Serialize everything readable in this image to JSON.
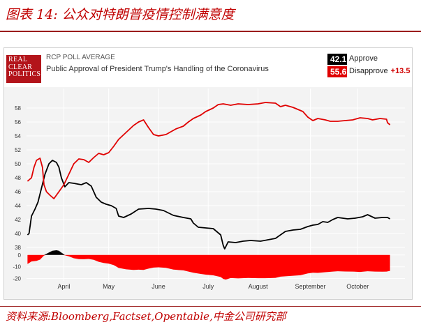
{
  "figure": {
    "title": "图表 14:  公众对特朗普疫情控制满意度",
    "source": "资料来源:Bloomberg,Factset,Opentable,中金公司研究部"
  },
  "header": {
    "logo_lines": [
      "REAL",
      "CLEAR",
      "POLITICS"
    ],
    "poll_title": "RCP POLL AVERAGE",
    "subtitle": "Public Approval of President Trump's Handling of the Coronavirus",
    "approve_value": "42.1",
    "approve_label": "Approve",
    "disapprove_value": "55.6",
    "disapprove_label": "Disapprove",
    "spread": "+13.5"
  },
  "colors": {
    "approve": "#000000",
    "disapprove": "#e00000",
    "plot_bg": "#f3f3f3",
    "grid": "#ffffff",
    "title": "#c00000"
  },
  "chart_data": [
    {
      "type": "line",
      "title": "RCP POLL AVERAGE",
      "subtitle": "Public Approval of President Trump's Handling of the Coronavirus",
      "x_ticks": [
        "April",
        "May",
        "June",
        "July",
        "August",
        "September",
        "October"
      ],
      "x_tick_positions": [
        0.1,
        1.0,
        2.0,
        3.0,
        4.0,
        5.05,
        6.0
      ],
      "xlim": [
        -0.65,
        6.95
      ],
      "ylim": [
        37,
        60
      ],
      "yticks": [
        38,
        40,
        42,
        44,
        46,
        48,
        50,
        52,
        54,
        56,
        58
      ],
      "grid": true,
      "series": [
        {
          "name": "Approve",
          "color": "#000000",
          "points": [
            [
              -0.63,
              39.8
            ],
            [
              -0.6,
              40
            ],
            [
              -0.55,
              42.5
            ],
            [
              -0.48,
              43.5
            ],
            [
              -0.42,
              44.5
            ],
            [
              -0.35,
              46.5
            ],
            [
              -0.28,
              48.5
            ],
            [
              -0.2,
              50
            ],
            [
              -0.13,
              50.5
            ],
            [
              -0.05,
              50.2
            ],
            [
              0,
              49.5
            ],
            [
              0.05,
              48
            ],
            [
              0.12,
              46.7
            ],
            [
              0.2,
              47.3
            ],
            [
              0.3,
              47.2
            ],
            [
              0.45,
              47
            ],
            [
              0.55,
              47.3
            ],
            [
              0.65,
              46.8
            ],
            [
              0.75,
              45.2
            ],
            [
              0.85,
              44.5
            ],
            [
              0.95,
              44.2
            ],
            [
              1.05,
              44
            ],
            [
              1.15,
              43.6
            ],
            [
              1.2,
              42.5
            ],
            [
              1.3,
              42.3
            ],
            [
              1.45,
              42.8
            ],
            [
              1.6,
              43.5
            ],
            [
              1.8,
              43.6
            ],
            [
              1.95,
              43.5
            ],
            [
              2.1,
              43.3
            ],
            [
              2.3,
              42.6
            ],
            [
              2.5,
              42.3
            ],
            [
              2.65,
              42.1
            ],
            [
              2.7,
              41.5
            ],
            [
              2.8,
              40.9
            ],
            [
              2.95,
              40.8
            ],
            [
              3.1,
              40.7
            ],
            [
              3.25,
              39.8
            ],
            [
              3.3,
              38.3
            ],
            [
              3.33,
              37.8
            ],
            [
              3.4,
              38.8
            ],
            [
              3.55,
              38.7
            ],
            [
              3.7,
              38.9
            ],
            [
              3.85,
              39
            ],
            [
              4.05,
              38.9
            ],
            [
              4.2,
              39.1
            ],
            [
              4.35,
              39.3
            ],
            [
              4.45,
              39.8
            ],
            [
              4.55,
              40.3
            ],
            [
              4.7,
              40.5
            ],
            [
              4.85,
              40.6
            ],
            [
              5,
              41
            ],
            [
              5.1,
              41.2
            ],
            [
              5.2,
              41.3
            ],
            [
              5.3,
              41.7
            ],
            [
              5.4,
              41.6
            ],
            [
              5.5,
              42
            ],
            [
              5.6,
              42.3
            ],
            [
              5.7,
              42.2
            ],
            [
              5.8,
              42.1
            ],
            [
              5.95,
              42.2
            ],
            [
              6.1,
              42.4
            ],
            [
              6.2,
              42.7
            ],
            [
              6.35,
              42.2
            ],
            [
              6.5,
              42.3
            ],
            [
              6.6,
              42.3
            ],
            [
              6.65,
              42.1
            ]
          ]
        },
        {
          "name": "Disapprove",
          "color": "#e00000",
          "points": [
            [
              -0.63,
              47.5
            ],
            [
              -0.55,
              48
            ],
            [
              -0.5,
              49.5
            ],
            [
              -0.45,
              50.5
            ],
            [
              -0.38,
              50.8
            ],
            [
              -0.33,
              49.5
            ],
            [
              -0.3,
              47
            ],
            [
              -0.25,
              46
            ],
            [
              -0.18,
              45.5
            ],
            [
              -0.1,
              45
            ],
            [
              -0.05,
              45.5
            ],
            [
              0,
              46
            ],
            [
              0.1,
              47
            ],
            [
              0.2,
              48.5
            ],
            [
              0.3,
              50
            ],
            [
              0.4,
              50.7
            ],
            [
              0.5,
              50.6
            ],
            [
              0.6,
              50.2
            ],
            [
              0.7,
              50.9
            ],
            [
              0.8,
              51.5
            ],
            [
              0.9,
              51.3
            ],
            [
              1,
              51.6
            ],
            [
              1.1,
              52.5
            ],
            [
              1.2,
              53.5
            ],
            [
              1.35,
              54.5
            ],
            [
              1.5,
              55.5
            ],
            [
              1.6,
              56
            ],
            [
              1.7,
              56.3
            ],
            [
              1.8,
              55.2
            ],
            [
              1.9,
              54.2
            ],
            [
              2,
              54
            ],
            [
              2.15,
              54.2
            ],
            [
              2.25,
              54.6
            ],
            [
              2.35,
              55
            ],
            [
              2.5,
              55.4
            ],
            [
              2.6,
              56
            ],
            [
              2.7,
              56.5
            ],
            [
              2.85,
              57
            ],
            [
              2.95,
              57.5
            ],
            [
              3.1,
              58
            ],
            [
              3.2,
              58.5
            ],
            [
              3.3,
              58.6
            ],
            [
              3.45,
              58.4
            ],
            [
              3.6,
              58.6
            ],
            [
              3.8,
              58.5
            ],
            [
              4,
              58.6
            ],
            [
              4.15,
              58.8
            ],
            [
              4.35,
              58.7
            ],
            [
              4.45,
              58.2
            ],
            [
              4.55,
              58.4
            ],
            [
              4.7,
              58.1
            ],
            [
              4.8,
              57.8
            ],
            [
              4.9,
              57.5
            ],
            [
              5,
              56.7
            ],
            [
              5.1,
              56.2
            ],
            [
              5.2,
              56.5
            ],
            [
              5.35,
              56.3
            ],
            [
              5.45,
              56.1
            ],
            [
              5.6,
              56.1
            ],
            [
              5.75,
              56.2
            ],
            [
              5.9,
              56.3
            ],
            [
              6.05,
              56.6
            ],
            [
              6.2,
              56.5
            ],
            [
              6.3,
              56.3
            ],
            [
              6.45,
              56.5
            ],
            [
              6.58,
              56.4
            ],
            [
              6.6,
              55.9
            ],
            [
              6.65,
              55.6
            ]
          ]
        }
      ]
    },
    {
      "type": "area",
      "description": "Spread (Approve minus Disapprove)",
      "ylim": [
        -22,
        4
      ],
      "yticks": [
        0,
        -10,
        -20
      ],
      "colors": {
        "positive": "#000000",
        "negative": "#ff0000"
      },
      "points": [
        [
          -0.63,
          -7.7
        ],
        [
          -0.55,
          -5.5
        ],
        [
          -0.45,
          -5
        ],
        [
          -0.38,
          -4
        ],
        [
          -0.3,
          -0.5
        ],
        [
          -0.25,
          1
        ],
        [
          -0.18,
          2.5
        ],
        [
          -0.13,
          3.5
        ],
        [
          -0.05,
          4
        ],
        [
          0,
          3.5
        ],
        [
          0.05,
          2
        ],
        [
          0.12,
          -0.3
        ],
        [
          0.2,
          -1.2
        ],
        [
          0.3,
          -2.8
        ],
        [
          0.4,
          -3.5
        ],
        [
          0.5,
          -3.6
        ],
        [
          0.6,
          -3.4
        ],
        [
          0.7,
          -4.1
        ],
        [
          0.8,
          -5.8
        ],
        [
          0.9,
          -6.8
        ],
        [
          1,
          -7.4
        ],
        [
          1.1,
          -8.5
        ],
        [
          1.2,
          -11
        ],
        [
          1.35,
          -12.2
        ],
        [
          1.5,
          -12.7
        ],
        [
          1.6,
          -12.5
        ],
        [
          1.7,
          -12.7
        ],
        [
          1.8,
          -11.6
        ],
        [
          1.9,
          -10.7
        ],
        [
          2,
          -10.5
        ],
        [
          2.15,
          -10.9
        ],
        [
          2.3,
          -12.4
        ],
        [
          2.5,
          -13.1
        ],
        [
          2.7,
          -15
        ],
        [
          2.85,
          -16.1
        ],
        [
          2.95,
          -16.7
        ],
        [
          3.1,
          -17.3
        ],
        [
          3.25,
          -18.7
        ],
        [
          3.3,
          -20.3
        ],
        [
          3.35,
          -20.9
        ],
        [
          3.45,
          -19.6
        ],
        [
          3.6,
          -19.9
        ],
        [
          3.8,
          -19.5
        ],
        [
          4,
          -19.7
        ],
        [
          4.15,
          -19.7
        ],
        [
          4.35,
          -19.4
        ],
        [
          4.45,
          -18.4
        ],
        [
          4.55,
          -18.1
        ],
        [
          4.7,
          -17.6
        ],
        [
          4.85,
          -17.2
        ],
        [
          5,
          -15.7
        ],
        [
          5.1,
          -15
        ],
        [
          5.2,
          -15.2
        ],
        [
          5.35,
          -14.6
        ],
        [
          5.5,
          -14.1
        ],
        [
          5.6,
          -13.8
        ],
        [
          5.75,
          -14
        ],
        [
          5.9,
          -14.1
        ],
        [
          6.05,
          -14.4
        ],
        [
          6.2,
          -13.8
        ],
        [
          6.35,
          -14.1
        ],
        [
          6.5,
          -14.2
        ],
        [
          6.58,
          -14.1
        ],
        [
          6.65,
          -13.5
        ]
      ]
    }
  ]
}
